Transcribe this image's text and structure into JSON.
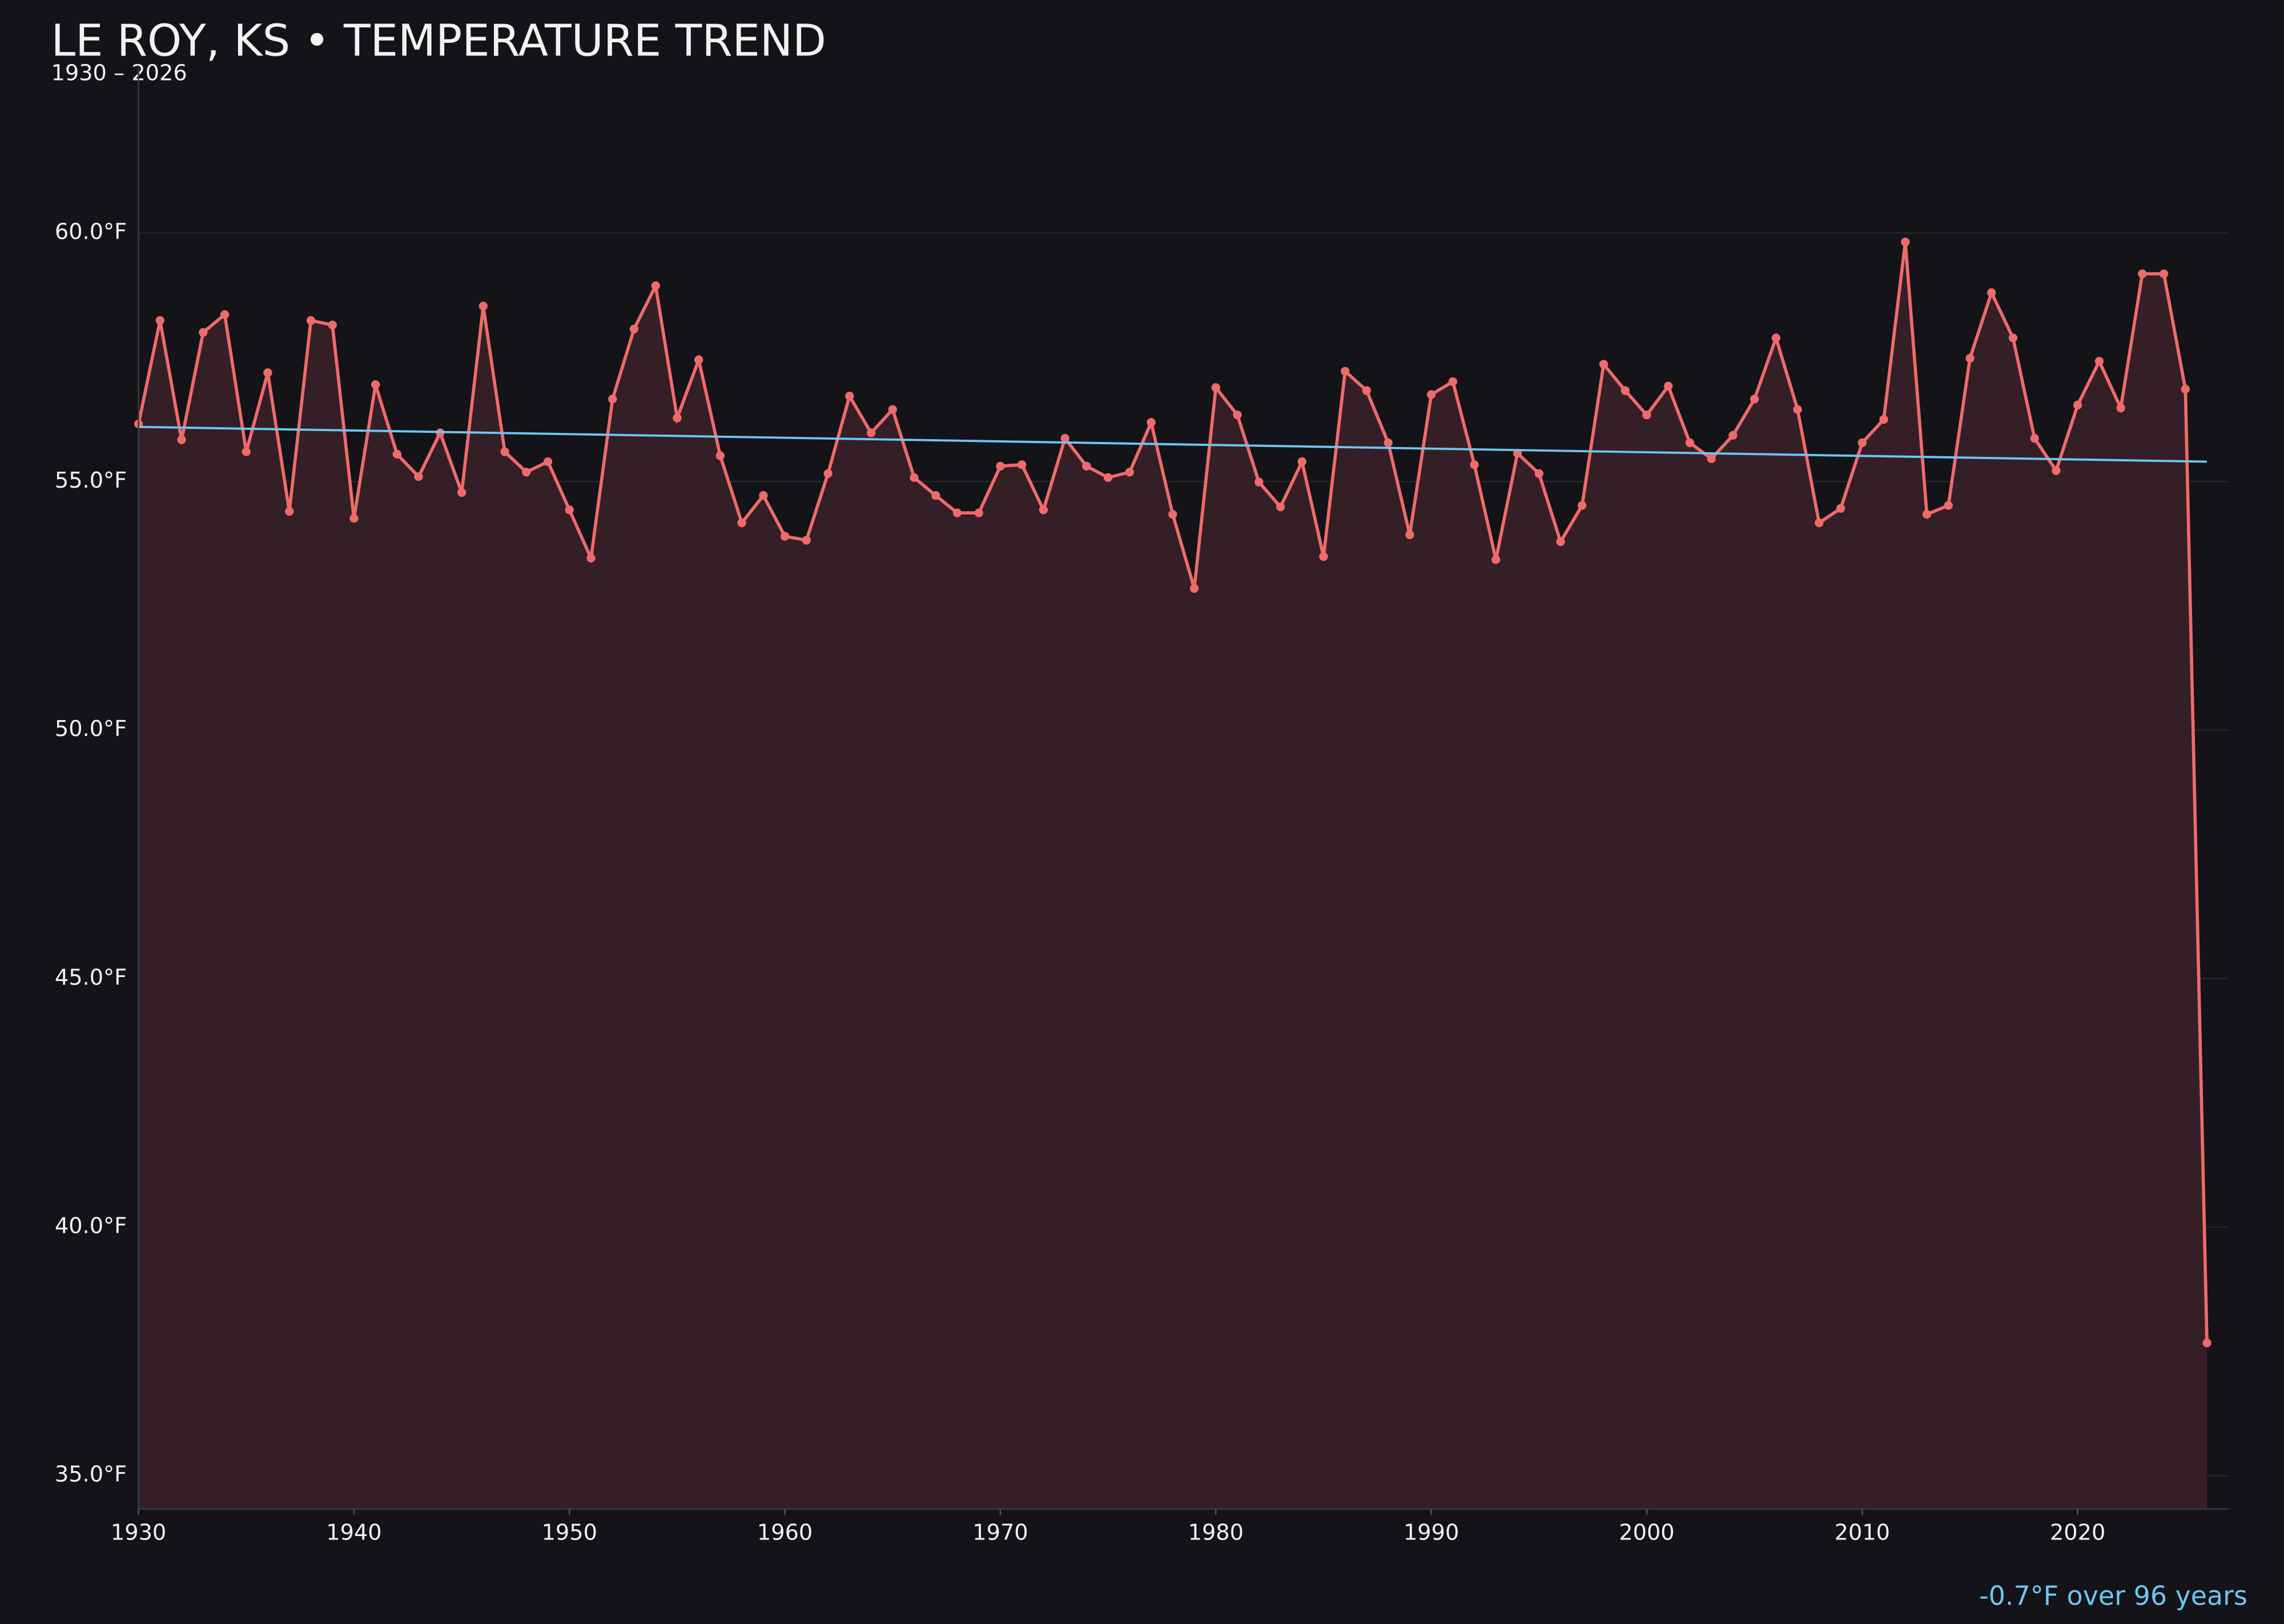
{
  "chart_data": {
    "type": "line",
    "title": "LE ROY, KS • TEMPERATURE TREND",
    "subtitle": "1930 – 2026",
    "annotation": "-0.7°F over 96 years",
    "x": [
      1930,
      1931,
      1932,
      1933,
      1934,
      1935,
      1936,
      1937,
      1938,
      1939,
      1940,
      1941,
      1942,
      1943,
      1944,
      1945,
      1946,
      1947,
      1948,
      1949,
      1950,
      1951,
      1952,
      1953,
      1954,
      1955,
      1956,
      1957,
      1958,
      1959,
      1960,
      1961,
      1962,
      1963,
      1964,
      1965,
      1966,
      1967,
      1968,
      1969,
      1970,
      1971,
      1972,
      1973,
      1974,
      1975,
      1976,
      1977,
      1978,
      1979,
      1980,
      1981,
      1982,
      1983,
      1984,
      1985,
      1986,
      1987,
      1988,
      1989,
      1990,
      1991,
      1992,
      1993,
      1994,
      1995,
      1996,
      1997,
      1998,
      1999,
      2000,
      2001,
      2002,
      2003,
      2004,
      2005,
      2006,
      2007,
      2008,
      2009,
      2010,
      2011,
      2012,
      2013,
      2014,
      2015,
      2016,
      2017,
      2018,
      2019,
      2020,
      2021,
      2022,
      2023,
      2024,
      2025,
      2026
    ],
    "series": [
      {
        "color": "#ee6b6b",
        "area_color": "#351f26",
        "values": [
          56.16,
          58.24,
          55.84,
          58.0,
          58.36,
          55.6,
          57.19,
          54.4,
          58.24,
          58.15,
          54.26,
          56.95,
          55.55,
          55.1,
          55.98,
          54.78,
          58.53,
          55.6,
          55.19,
          55.4,
          54.43,
          53.46,
          56.66,
          58.07,
          58.94,
          56.28,
          57.45,
          55.52,
          54.17,
          54.72,
          53.9,
          53.82,
          55.16,
          56.72,
          55.98,
          56.45,
          55.08,
          54.72,
          54.37,
          54.37,
          55.31,
          55.34,
          54.43,
          55.87,
          55.31,
          55.08,
          55.19,
          56.19,
          54.34,
          52.85,
          56.89,
          56.34,
          54.99,
          54.49,
          55.4,
          53.49,
          57.22,
          56.83,
          55.78,
          53.93,
          56.75,
          57.01,
          55.34,
          53.43,
          55.57,
          55.16,
          53.79,
          54.52,
          57.36,
          56.83,
          56.34,
          56.92,
          55.78,
          55.46,
          55.93,
          56.66,
          57.89,
          56.45,
          54.17,
          54.46,
          55.78,
          56.25,
          59.82,
          54.34,
          54.52,
          57.48,
          58.8,
          57.89,
          55.87,
          55.22,
          56.54,
          57.42,
          56.48,
          59.18,
          59.18,
          56.86,
          37.67
        ]
      }
    ],
    "trend": {
      "color": "#6ec6f0",
      "x": [
        1930,
        2026
      ],
      "values": [
        56.1,
        55.4
      ]
    },
    "xlim": [
      1930,
      2027
    ],
    "ylim": [
      34.33,
      63.37
    ],
    "xticks": [
      1930,
      1940,
      1950,
      1960,
      1970,
      1980,
      1990,
      2000,
      2010,
      2020
    ],
    "yticks": [
      {
        "value": 35,
        "label": "35.0°F"
      },
      {
        "value": 40,
        "label": "40.0°F"
      },
      {
        "value": 45,
        "label": "45.0°F"
      },
      {
        "value": 50,
        "label": "50.0°F"
      },
      {
        "value": 55,
        "label": "55.0°F"
      },
      {
        "value": 60,
        "label": "60.0°F"
      }
    ],
    "grid": true
  }
}
